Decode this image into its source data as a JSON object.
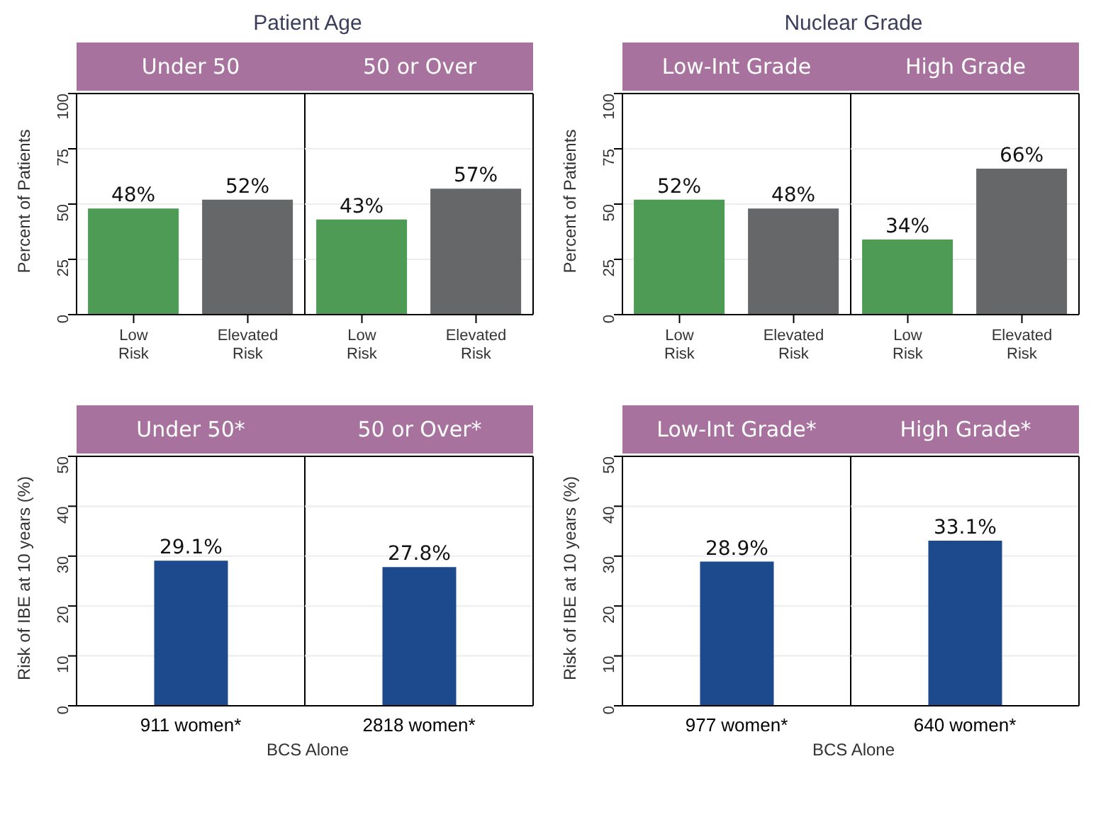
{
  "chart_data": [
    {
      "type": "bar",
      "title": "Patient Age",
      "ylabel": "Percent of Patients",
      "annotations": [
        "Under 50",
        "50 or Over"
      ],
      "categories": [
        "Low Risk",
        "Elevated Risk",
        "Low Risk",
        "Elevated Risk"
      ],
      "values": [
        48,
        52,
        43,
        57
      ],
      "value_labels": [
        "48%",
        "52%",
        "43%",
        "57%"
      ],
      "colors": [
        "#4e9b55",
        "#666769",
        "#4e9b55",
        "#666769"
      ],
      "ylim": [
        0,
        100
      ],
      "yticks": [
        0,
        25,
        50,
        75,
        100
      ],
      "grid": "y"
    },
    {
      "type": "bar",
      "title": "Nuclear Grade",
      "ylabel": "Percent of Patients",
      "annotations": [
        "Low-Int Grade",
        "High Grade"
      ],
      "categories": [
        "Low Risk",
        "Elevated Risk",
        "Low Risk",
        "Elevated Risk"
      ],
      "values": [
        52,
        48,
        34,
        66
      ],
      "value_labels": [
        "52%",
        "48%",
        "34%",
        "66%"
      ],
      "colors": [
        "#4e9b55",
        "#666769",
        "#4e9b55",
        "#666769"
      ],
      "ylim": [
        0,
        100
      ],
      "yticks": [
        0,
        25,
        50,
        75,
        100
      ],
      "grid": "y"
    },
    {
      "type": "bar",
      "xlabel": "BCS Alone",
      "ylabel": "Risk of IBE at 10 years (%)",
      "annotations": [
        "Under 50*",
        "50 or Over*"
      ],
      "categories": [
        "911 women*",
        "2818 women*"
      ],
      "values": [
        29.1,
        27.8
      ],
      "value_labels": [
        "29.1%",
        "27.8%"
      ],
      "colors": [
        "#1c4a8d",
        "#1c4a8d"
      ],
      "ylim": [
        0,
        50
      ],
      "yticks": [
        0,
        10,
        20,
        30,
        40,
        50
      ],
      "grid": "y"
    },
    {
      "type": "bar",
      "xlabel": "BCS Alone",
      "ylabel": "Risk of IBE at 10 years (%)",
      "annotations": [
        "Low-Int Grade*",
        "High Grade*"
      ],
      "categories": [
        "977 women*",
        "640 women*"
      ],
      "values": [
        28.9,
        33.1
      ],
      "value_labels": [
        "28.9%",
        "33.1%"
      ],
      "colors": [
        "#1c4a8d",
        "#1c4a8d"
      ],
      "ylim": [
        0,
        50
      ],
      "yticks": [
        0,
        10,
        20,
        30,
        40,
        50
      ],
      "grid": "y"
    }
  ]
}
